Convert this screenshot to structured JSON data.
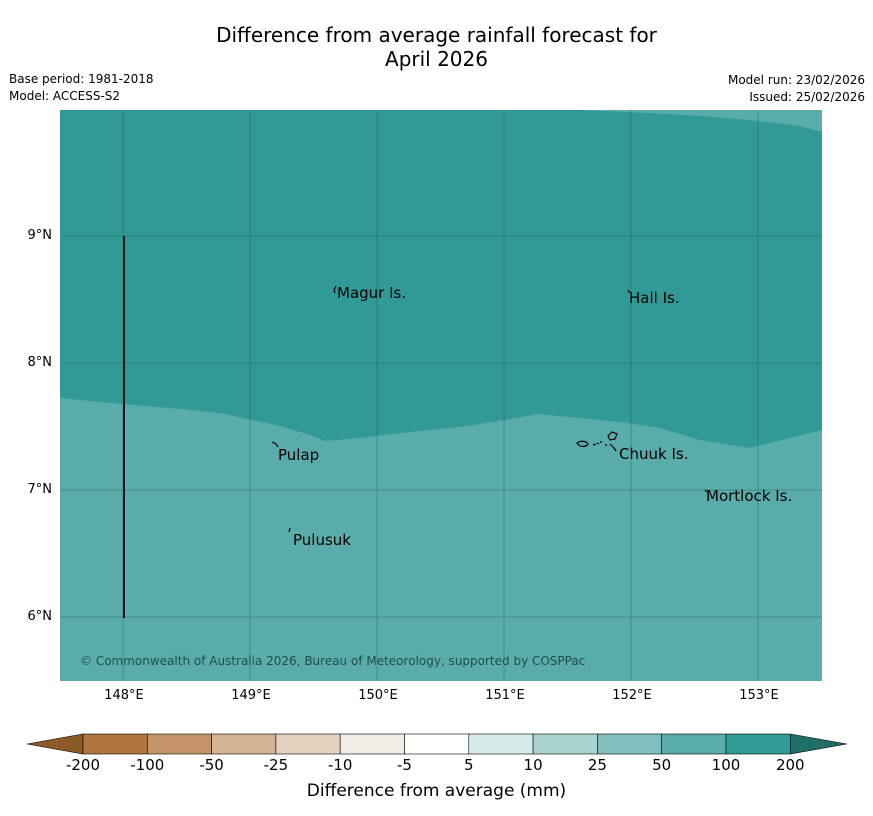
{
  "title_line1": "Difference from average rainfall forecast for",
  "title_line2": "April 2026",
  "meta": {
    "base_period": "Base period: 1981-2018",
    "model": "Model: ACCESS-S2",
    "model_run": "Model run: 23/02/2026",
    "issued": "Issued: 25/02/2026"
  },
  "map": {
    "lat_ticks": [
      "9°N",
      "8°N",
      "7°N",
      "6°N"
    ],
    "lon_ticks": [
      "148°E",
      "149°E",
      "150°E",
      "151°E",
      "152°E",
      "153°E"
    ],
    "places": {
      "magur": "Magur Is.",
      "hall": "Hall Is.",
      "pulap": "Pulap",
      "chuuk": "Chuuk Is.",
      "mortlock": "Mortlock Is.",
      "pulusuk": "Pulusuk"
    },
    "copyright": "© Commonwealth of Australia 2026, Bureau of Meteorology, supported by COSPPac",
    "region_colors": {
      "wet_100_200": "#319a96",
      "wet_50_100": "#5aacab"
    }
  },
  "colorbar": {
    "labels": [
      "-200",
      "-100",
      "-50",
      "-25",
      "-10",
      "-5",
      "5",
      "10",
      "25",
      "50",
      "100",
      "200"
    ],
    "colors": [
      "#8c5a26",
      "#b0763e",
      "#c39467",
      "#d4b393",
      "#e4d2c1",
      "#f1eee8",
      "#ffffff",
      "#d5ebea",
      "#abd3d2",
      "#80bfbd",
      "#5aacab",
      "#319a96",
      "#1f6e69"
    ],
    "title": "Difference from average (mm)"
  }
}
